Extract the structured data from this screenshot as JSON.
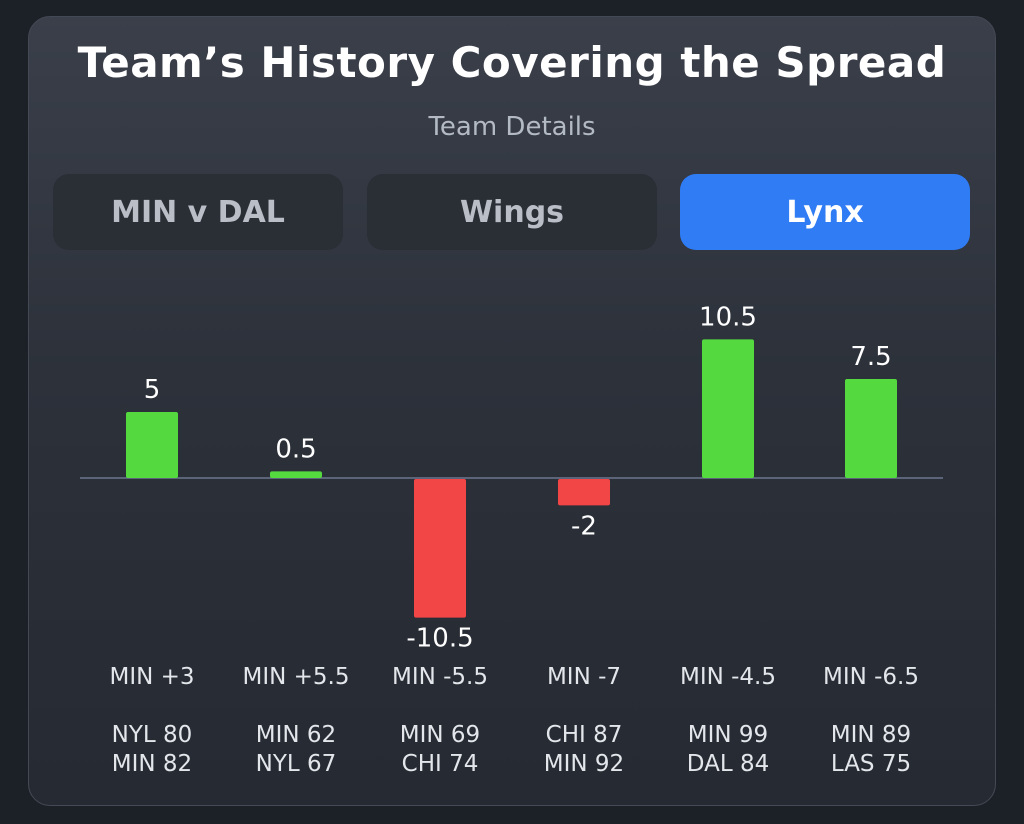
{
  "header": {
    "title": "Team’s History Covering the Spread",
    "subtitle": "Team Details"
  },
  "tabs": [
    {
      "label": "MIN v DAL",
      "active": false
    },
    {
      "label": "Wings",
      "active": false
    },
    {
      "label": "Lynx",
      "active": true
    }
  ],
  "colors": {
    "positive": "#54d93f",
    "negative": "#f24545",
    "active_tab": "#2f7cf5",
    "baseline": "#5b6478"
  },
  "chart_data": {
    "type": "bar",
    "title": "Team’s History Covering the Spread",
    "subtitle": "Team Details",
    "categories": [
      "MIN +3",
      "MIN +5.5",
      "MIN -5.5",
      "MIN -7",
      "MIN -4.5",
      "MIN -6.5"
    ],
    "values": [
      5,
      0.5,
      -10.5,
      -2,
      10.5,
      7.5
    ],
    "value_labels": [
      "5",
      "0.5",
      "-10.5",
      "-2",
      "10.5",
      "7.5"
    ],
    "scores": [
      [
        "NYL 80",
        "MIN 82"
      ],
      [
        "MIN 62",
        "NYL 67"
      ],
      [
        "MIN 69",
        "CHI 74"
      ],
      [
        "CHI 87",
        "MIN 92"
      ],
      [
        "MIN 99",
        "DAL 84"
      ],
      [
        "MIN 89",
        "LAS 75"
      ]
    ],
    "xlabel": "",
    "ylabel": "",
    "ylim": [
      -10.5,
      10.5
    ],
    "grid": false,
    "legend": "none"
  }
}
